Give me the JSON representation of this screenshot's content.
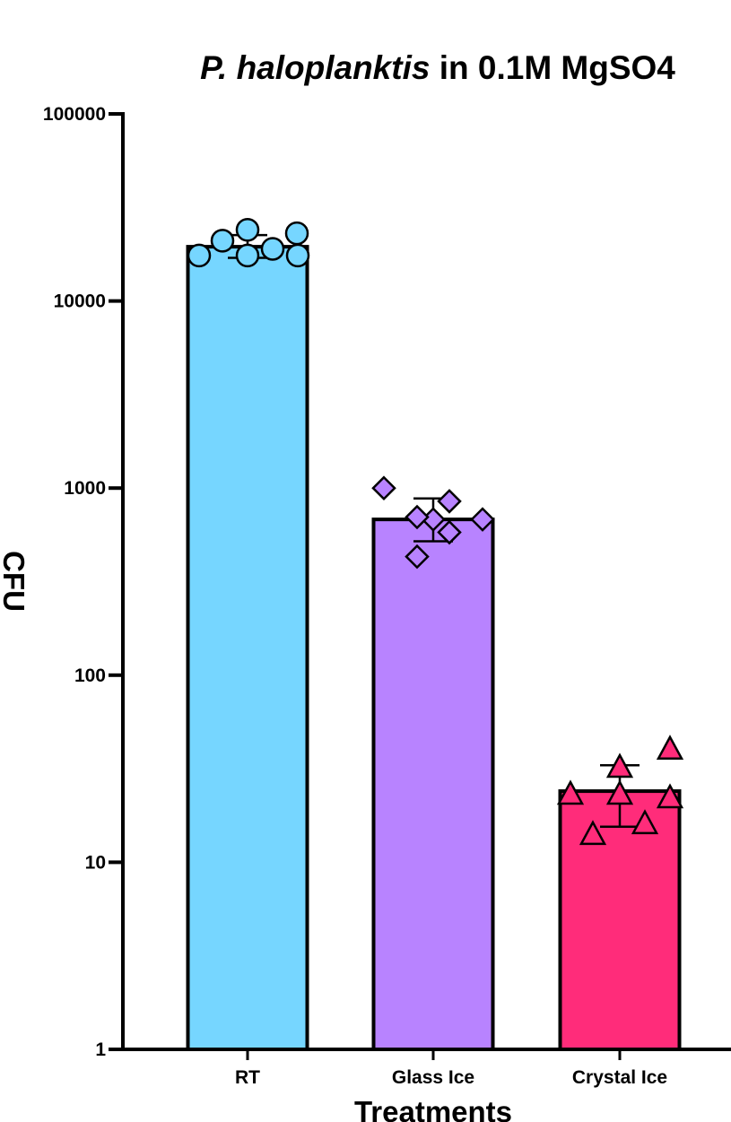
{
  "chart_data": {
    "type": "bar",
    "title_italic": "P. haloplanktis",
    "title_rest": " in 0.1M MgSO4",
    "xlabel": "Treatments",
    "ylabel": "CFU",
    "y_scale": "log",
    "ylim": [
      1,
      100000
    ],
    "yticks": [
      1,
      10,
      100,
      1000,
      10000,
      100000
    ],
    "ytick_labels": [
      "1",
      "10",
      "100",
      "1000",
      "10000",
      "100000"
    ],
    "grid": false,
    "legend": "none",
    "categories": [
      "RT",
      "Glass Ice",
      "Crystal Ice"
    ],
    "values": [
      19500,
      680,
      24
    ],
    "error": [
      [
        17000,
        22500
      ],
      [
        520,
        880
      ],
      [
        15.5,
        33
      ]
    ],
    "points": [
      [
        17500,
        21000,
        24000,
        17500,
        19000,
        23000,
        17500
      ],
      [
        1000,
        680,
        700,
        430,
        850,
        580,
        680
      ],
      [
        23,
        14,
        32,
        23,
        16,
        40,
        22
      ]
    ],
    "markers": [
      "circle",
      "diamond",
      "triangle"
    ],
    "colors": [
      "#76D6FF",
      "#B883FF",
      "#FF2C7A"
    ]
  }
}
